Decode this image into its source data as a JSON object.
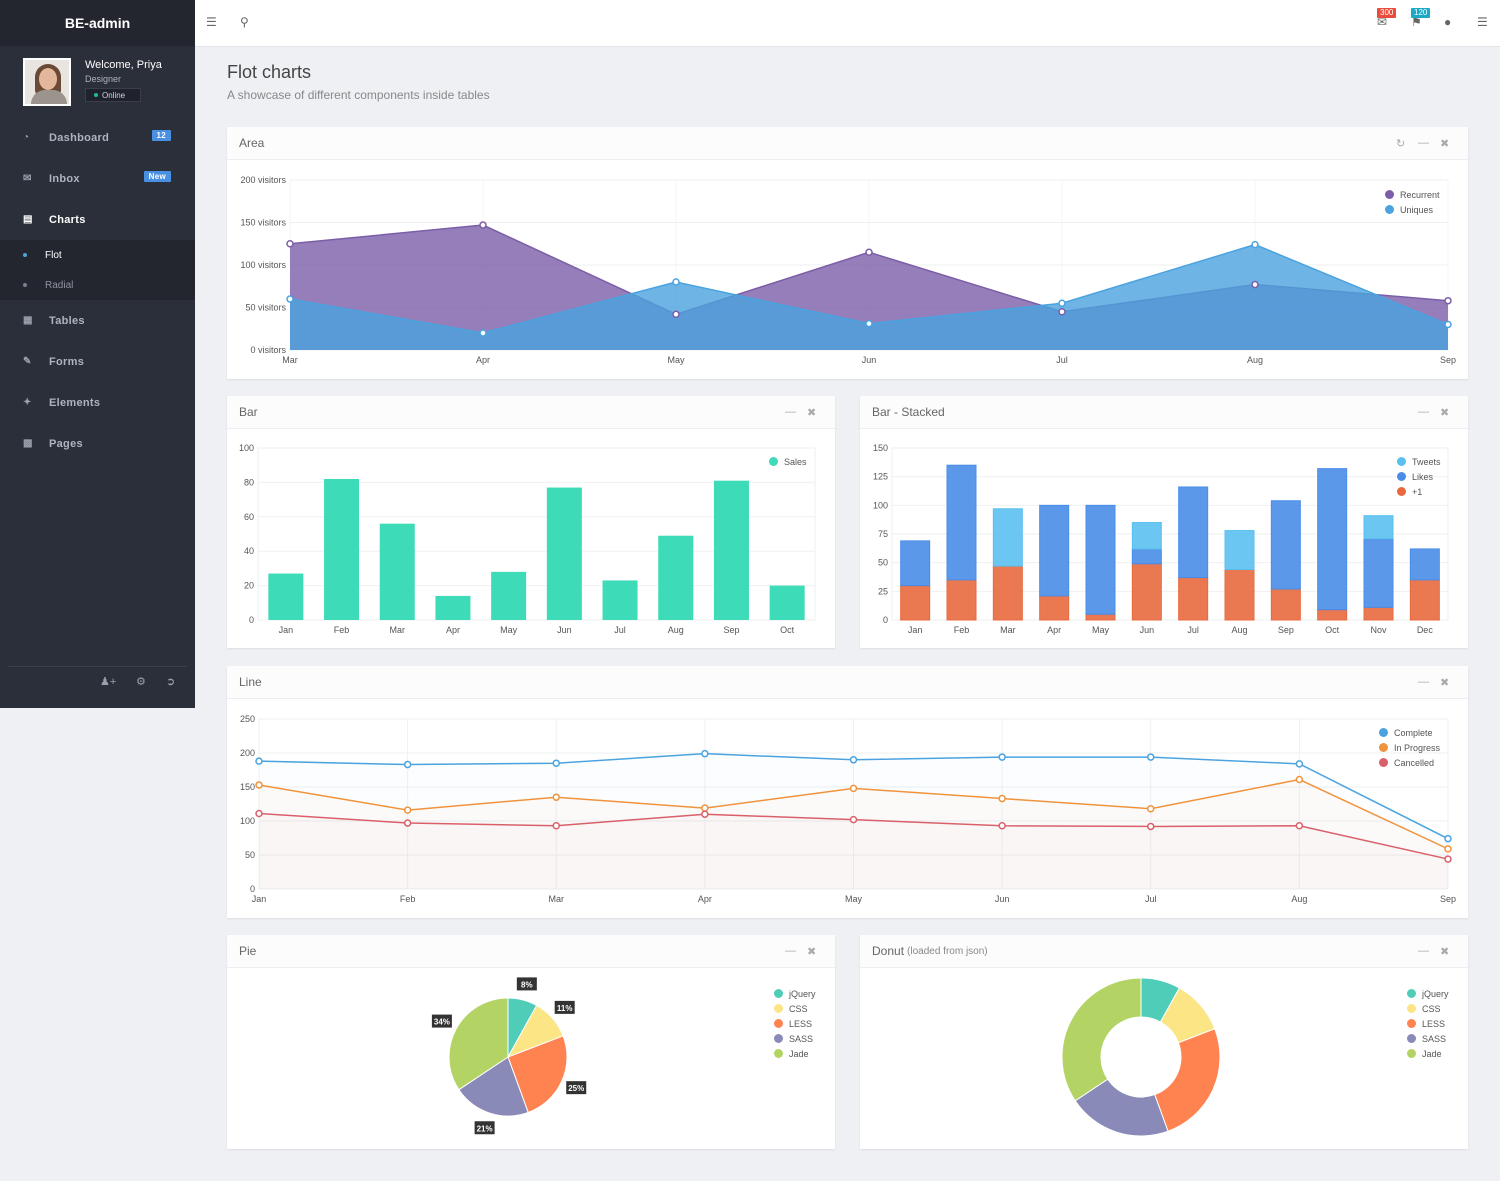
{
  "app": {
    "brand": "BE-admin"
  },
  "user": {
    "welcome": "Welcome, Priya",
    "role": "Designer",
    "status": "Online"
  },
  "nav": {
    "items": [
      {
        "label": "Dashboard",
        "icon": "dashboard-icon",
        "badge": "12"
      },
      {
        "label": "Inbox",
        "icon": "inbox-icon",
        "badge": "New"
      },
      {
        "label": "Charts",
        "icon": "bar-chart-icon"
      },
      {
        "label": "Tables",
        "icon": "table-icon"
      },
      {
        "label": "Forms",
        "icon": "edit-icon"
      },
      {
        "label": "Elements",
        "icon": "wrench-icon"
      },
      {
        "label": "Pages",
        "icon": "file-icon"
      }
    ],
    "sub": [
      {
        "label": "Flot"
      },
      {
        "label": "Radial"
      }
    ]
  },
  "topbar": {
    "mail_count": "300",
    "notif_count": "120"
  },
  "page": {
    "title": "Flot charts",
    "subtitle": "A showcase of different components inside tables"
  },
  "panels": {
    "area": "Area",
    "bar": "Bar",
    "stacked": "Bar - Stacked",
    "line": "Line",
    "pie": "Pie",
    "donut": "Donut",
    "donut_small": "(loaded from json)"
  },
  "colors": {
    "recurrent": "#7b5ea7",
    "uniques": "#4aa3df",
    "sales": "#3ddbb8",
    "tweets": "#5bc0f0",
    "likes": "#4a8de8",
    "plus1": "#e8693e",
    "complete": "#4aa3df",
    "inprogress": "#f0933c",
    "cancelled": "#d9606a",
    "jquery": "#4fcdb9",
    "css": "#fbe584",
    "less": "#ff8350",
    "sass": "#8a8ab8",
    "jade": "#b3d465"
  },
  "chart_data": [
    {
      "id": "area",
      "type": "area",
      "categories": [
        "Mar",
        "Apr",
        "May",
        "Jun",
        "Jul",
        "Aug",
        "Sep"
      ],
      "ylim": [
        0,
        200
      ],
      "yticks": [
        "0 visitors",
        "50 visitors",
        "100 visitors",
        "150 visitors",
        "200 visitors"
      ],
      "series": [
        {
          "name": "Recurrent",
          "values": [
            125,
            147,
            42,
            115,
            45,
            77,
            58
          ]
        },
        {
          "name": "Uniques",
          "values": [
            60,
            20,
            80,
            31,
            55,
            124,
            30
          ]
        }
      ]
    },
    {
      "id": "bar",
      "type": "bar",
      "categories": [
        "Jan",
        "Feb",
        "Mar",
        "Apr",
        "May",
        "Jun",
        "Jul",
        "Aug",
        "Sep",
        "Oct"
      ],
      "ylim": [
        0,
        100
      ],
      "yticks": [
        "0",
        "20",
        "40",
        "60",
        "80",
        "100"
      ],
      "series": [
        {
          "name": "Sales",
          "values": [
            27,
            82,
            56,
            14,
            28,
            77,
            23,
            49,
            81,
            20
          ]
        }
      ]
    },
    {
      "id": "stacked",
      "type": "bar",
      "stacked": true,
      "categories": [
        "Jan",
        "Feb",
        "Mar",
        "Apr",
        "May",
        "Jun",
        "Jul",
        "Aug",
        "Sep",
        "Oct",
        "Nov",
        "Dec"
      ],
      "ylim": [
        0,
        150
      ],
      "yticks": [
        "0",
        "25",
        "50",
        "75",
        "100",
        "125",
        "150"
      ],
      "series": [
        {
          "name": "Tweets",
          "values": [
            0,
            0,
            50,
            0,
            0,
            23,
            0,
            34,
            0,
            0,
            20,
            0
          ]
        },
        {
          "name": "Likes",
          "values": [
            39,
            100,
            0,
            79,
            95,
            13,
            79,
            0,
            77,
            123,
            60,
            27
          ]
        },
        {
          "name": "+1",
          "values": [
            30,
            35,
            47,
            21,
            5,
            49,
            37,
            44,
            27,
            9,
            11,
            35
          ]
        }
      ]
    },
    {
      "id": "line",
      "type": "line",
      "categories": [
        "Jan",
        "Feb",
        "Mar",
        "Apr",
        "May",
        "Jun",
        "Jul",
        "Aug",
        "Sep"
      ],
      "ylim": [
        0,
        250
      ],
      "yticks": [
        "0",
        "50",
        "100",
        "150",
        "200",
        "250"
      ],
      "series": [
        {
          "name": "Complete",
          "values": [
            188,
            183,
            185,
            199,
            190,
            194,
            194,
            184,
            74
          ]
        },
        {
          "name": "In Progress",
          "values": [
            153,
            116,
            135,
            119,
            148,
            133,
            118,
            161,
            59
          ]
        },
        {
          "name": "Cancelled",
          "values": [
            111,
            97,
            93,
            110,
            102,
            93,
            92,
            93,
            44
          ]
        }
      ]
    },
    {
      "id": "pie",
      "type": "pie",
      "categories": [
        "jQuery",
        "CSS",
        "LESS",
        "SASS",
        "Jade"
      ],
      "values": [
        8,
        11,
        25,
        21,
        34
      ],
      "labels": [
        "8%",
        "11%",
        "25%",
        "21%",
        "34%"
      ]
    },
    {
      "id": "donut",
      "type": "pie",
      "categories": [
        "jQuery",
        "CSS",
        "LESS",
        "SASS",
        "Jade"
      ],
      "values": [
        8,
        11,
        25,
        21,
        34
      ]
    }
  ]
}
